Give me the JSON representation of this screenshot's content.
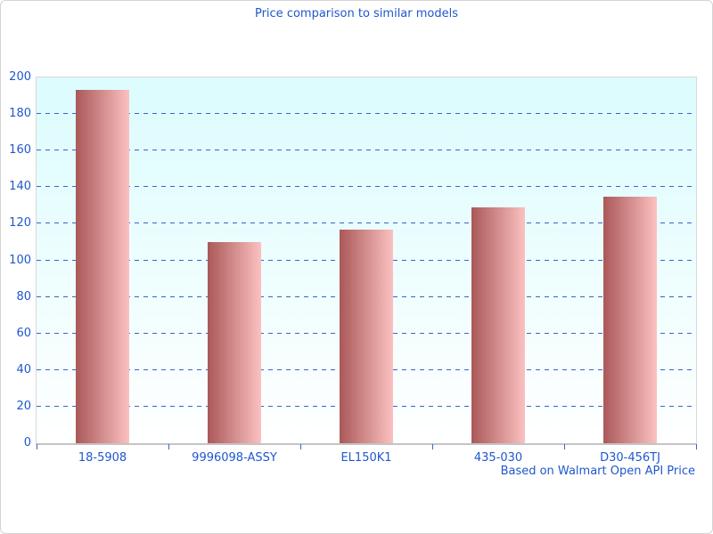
{
  "chart_data": {
    "type": "bar",
    "title": "Price comparison to similar models",
    "categories": [
      "18-5908",
      "9996098-ASSY",
      "EL150K1",
      "435-030",
      "D30-456TJ"
    ],
    "values": [
      193,
      110,
      117,
      129,
      135
    ],
    "xlabel": "",
    "ylabel": "",
    "ylim": [
      0,
      200
    ],
    "ytick_step": 20,
    "grid": "horizontal-dashed",
    "legend_position": "none",
    "footer": "Based on Walmart Open API Price",
    "colors": {
      "title_text": "#2057ce",
      "axis_text": "#2057ce",
      "gridline": "#3565cd",
      "tick": "#3565cd",
      "bar_gradient_left": "#aa5858",
      "bar_gradient_right": "#fcc1c1",
      "plot_bg_top": "#dbfcfd",
      "plot_bg_bottom": "#ffffff",
      "plot_border": "#d9d9d9",
      "axis_line": "#c4c4c4",
      "page_border": "#d4d4d4"
    }
  }
}
